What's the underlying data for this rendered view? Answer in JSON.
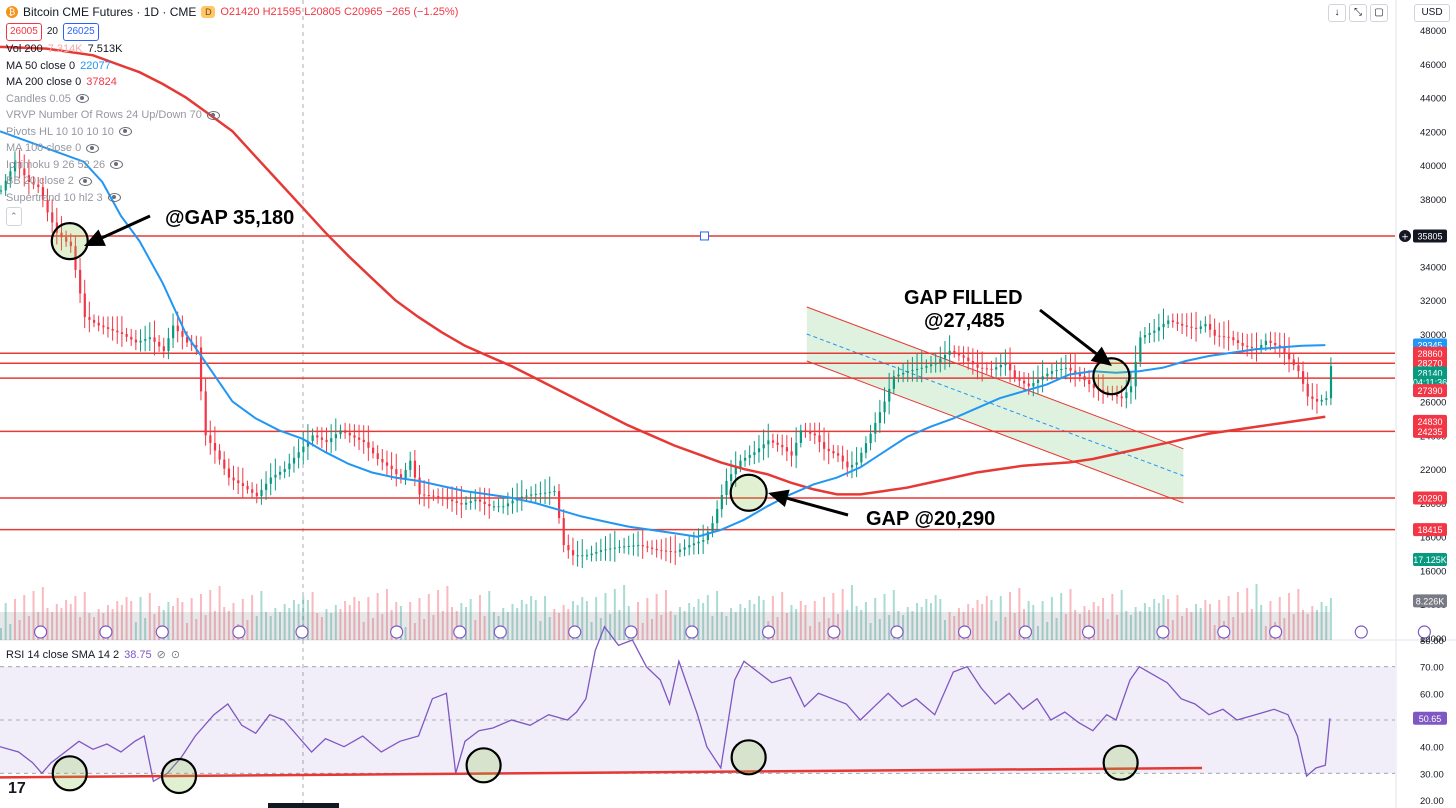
{
  "header": {
    "symbol_title": "Bitcoin CME Futures · 1D · CME",
    "logo_letter": "₿",
    "d_badge": "D",
    "ohlc": {
      "open": "O21420",
      "high": "H21595",
      "low": "L20805",
      "close": "C20965",
      "change": "−265 (−1.25%)"
    },
    "bid": "26005",
    "spread": "20",
    "ask": "26025",
    "currency": "USD"
  },
  "indicators": [
    {
      "name": "Vol 200",
      "v1": "7.314K",
      "v2": "7.513K",
      "c1": "#f7a9a7",
      "c2": "#131722"
    },
    {
      "name": "MA 50 close 0",
      "v1": "22077",
      "c1": "#2196f3"
    },
    {
      "name": "MA 200 close 0",
      "v1": "37824",
      "c1": "#f23645"
    },
    {
      "name": "Candles 0.05",
      "hidden": true
    },
    {
      "name": "VRVP Number Of Rows 24 Up/Down 70",
      "hidden": true
    },
    {
      "name": "Pivots HL 10 10 10 10",
      "hidden": true
    },
    {
      "name": "MA 100 close 0",
      "hidden": true
    },
    {
      "name": "Ichimoku 9 26 52 26",
      "hidden": true
    },
    {
      "name": "BB 20 close 2",
      "hidden": true
    },
    {
      "name": "Supertrend 10 hl2 3",
      "hidden": true
    }
  ],
  "rsi_legend": {
    "label": "RSI 14 close SMA 14 2",
    "value": "38.75"
  },
  "price_axis": [
    "48000",
    "46000",
    "44000",
    "42000",
    "40000",
    "38000",
    "36000",
    "34000",
    "32000",
    "30000",
    "28000",
    "26000",
    "24000",
    "22000",
    "20000",
    "18000",
    "16000",
    "14000",
    "12000"
  ],
  "rsi_axis": [
    "80.00",
    "70.00",
    "60.00",
    "50.00",
    "40.00",
    "30.00",
    "20.00"
  ],
  "price_labels": [
    {
      "text": "35805",
      "color": "#131722",
      "price": 35805
    },
    {
      "text": "29345",
      "color": "#2196f3",
      "price": 29345
    },
    {
      "text": "28860",
      "color": "#f23645",
      "price": 28860
    },
    {
      "text": "28270",
      "color": "#f23645",
      "price": 28270
    },
    {
      "text": "28140",
      "color": "#089981",
      "price": 27700
    },
    {
      "text": "04:11:36",
      "color": "#089981",
      "price": 27150
    },
    {
      "text": "27390",
      "color": "#f23645",
      "price": 26650
    },
    {
      "text": "24830",
      "color": "#f23645",
      "price": 24830
    },
    {
      "text": "24235",
      "color": "#f23645",
      "price": 24235
    },
    {
      "text": "20290",
      "color": "#f23645",
      "price": 20290
    },
    {
      "text": "18415",
      "color": "#f23645",
      "price": 18415
    },
    {
      "text": "17.125K",
      "color": "#089981",
      "price": 16650
    },
    {
      "text": "8.226K",
      "color": "#787b86",
      "price": 14200
    }
  ],
  "rsi_value_label": {
    "text": "50.65",
    "color": "#7e57c2",
    "rsi": 50.65
  },
  "horizontal_levels": [
    35805,
    28860,
    28270,
    27390,
    24235,
    20290,
    18415
  ],
  "annotations": {
    "gap_top": "@GAP 35,180",
    "gap_filled_line1": "GAP FILLED",
    "gap_filled_line2": "@27,485",
    "gap_bottom": "GAP @20,290"
  },
  "colors": {
    "up": "#089981",
    "down": "#f23645",
    "ma50": "#2196f3",
    "ma200": "#e53935",
    "rsi": "#7e57c2",
    "level": "#e53935"
  },
  "chart_data": {
    "type": "candlestick",
    "title": "Bitcoin CME Futures · 1D · CME",
    "ylim": [
      12000,
      48000
    ],
    "rsi_ylim": [
      20,
      80
    ],
    "rsi_band": [
      30,
      70
    ],
    "close_path": [
      [
        0,
        38500
      ],
      [
        6,
        40200
      ],
      [
        12,
        39000
      ],
      [
        16,
        38700
      ],
      [
        20,
        37200
      ],
      [
        24,
        36000
      ],
      [
        30,
        35200
      ],
      [
        36,
        31000
      ],
      [
        42,
        30500
      ],
      [
        52,
        30000
      ],
      [
        58,
        29500
      ],
      [
        64,
        29800
      ],
      [
        70,
        29000
      ],
      [
        74,
        30500
      ],
      [
        80,
        29500
      ],
      [
        84,
        29200
      ],
      [
        88,
        24000
      ],
      [
        92,
        23100
      ],
      [
        98,
        21500
      ],
      [
        104,
        21000
      ],
      [
        110,
        20400
      ],
      [
        116,
        21500
      ],
      [
        122,
        22000
      ],
      [
        128,
        23000
      ],
      [
        134,
        24000
      ],
      [
        140,
        23600
      ],
      [
        146,
        24300
      ],
      [
        150,
        24000
      ],
      [
        156,
        23600
      ],
      [
        162,
        22600
      ],
      [
        168,
        22000
      ],
      [
        172,
        21400
      ],
      [
        176,
        22500
      ],
      [
        180,
        20500
      ],
      [
        186,
        20400
      ],
      [
        192,
        20200
      ],
      [
        198,
        19900
      ],
      [
        204,
        20200
      ],
      [
        210,
        19800
      ],
      [
        216,
        19800
      ],
      [
        222,
        20300
      ],
      [
        228,
        20500
      ],
      [
        234,
        20600
      ],
      [
        238,
        20700
      ],
      [
        242,
        17500
      ],
      [
        246,
        16900
      ],
      [
        252,
        16900
      ],
      [
        258,
        17200
      ],
      [
        266,
        17400
      ],
      [
        274,
        17500
      ],
      [
        282,
        17200
      ],
      [
        290,
        17100
      ],
      [
        296,
        17500
      ],
      [
        302,
        17800
      ],
      [
        306,
        18800
      ],
      [
        312,
        21300
      ],
      [
        318,
        22500
      ],
      [
        324,
        23000
      ],
      [
        330,
        23700
      ],
      [
        336,
        23300
      ],
      [
        340,
        22800
      ],
      [
        344,
        24300
      ],
      [
        350,
        24000
      ],
      [
        354,
        23200
      ],
      [
        360,
        22800
      ],
      [
        364,
        22100
      ],
      [
        368,
        22400
      ],
      [
        374,
        24100
      ],
      [
        380,
        26000
      ],
      [
        384,
        27500
      ],
      [
        390,
        27800
      ],
      [
        396,
        28000
      ],
      [
        402,
        28300
      ],
      [
        408,
        29000
      ],
      [
        414,
        28600
      ],
      [
        420,
        28000
      ],
      [
        426,
        27900
      ],
      [
        432,
        28300
      ],
      [
        436,
        27400
      ],
      [
        442,
        26900
      ],
      [
        448,
        27500
      ],
      [
        452,
        27800
      ],
      [
        458,
        28000
      ],
      [
        464,
        27500
      ],
      [
        470,
        26800
      ],
      [
        476,
        26500
      ],
      [
        482,
        26200
      ],
      [
        486,
        26900
      ],
      [
        490,
        29800
      ],
      [
        496,
        30200
      ],
      [
        502,
        30800
      ],
      [
        508,
        30500
      ],
      [
        514,
        30300
      ],
      [
        518,
        30600
      ],
      [
        522,
        29900
      ],
      [
        528,
        29800
      ],
      [
        534,
        29300
      ],
      [
        540,
        29100
      ],
      [
        544,
        29600
      ],
      [
        550,
        29200
      ],
      [
        554,
        28500
      ],
      [
        558,
        27800
      ],
      [
        562,
        26300
      ],
      [
        566,
        26000
      ],
      [
        570,
        26200
      ],
      [
        572,
        28100
      ]
    ],
    "ma50": [
      [
        0,
        42000
      ],
      [
        20,
        41000
      ],
      [
        36,
        40200
      ],
      [
        44,
        39000
      ],
      [
        52,
        37000
      ],
      [
        60,
        35500
      ],
      [
        70,
        33000
      ],
      [
        80,
        30000
      ],
      [
        90,
        28000
      ],
      [
        100,
        26000
      ],
      [
        110,
        25000
      ],
      [
        120,
        24300
      ],
      [
        130,
        23800
      ],
      [
        140,
        23000
      ],
      [
        150,
        22300
      ],
      [
        160,
        21800
      ],
      [
        170,
        21500
      ],
      [
        180,
        21300
      ],
      [
        190,
        21000
      ],
      [
        200,
        20700
      ],
      [
        210,
        20500
      ],
      [
        220,
        20300
      ],
      [
        230,
        20000
      ],
      [
        240,
        19600
      ],
      [
        250,
        19200
      ],
      [
        260,
        18900
      ],
      [
        270,
        18600
      ],
      [
        280,
        18400
      ],
      [
        290,
        18200
      ],
      [
        300,
        18000
      ],
      [
        310,
        18400
      ],
      [
        320,
        19000
      ],
      [
        330,
        19800
      ],
      [
        340,
        20500
      ],
      [
        350,
        21100
      ],
      [
        360,
        21500
      ],
      [
        370,
        22100
      ],
      [
        380,
        23000
      ],
      [
        390,
        23900
      ],
      [
        400,
        24500
      ],
      [
        410,
        25000
      ],
      [
        420,
        25600
      ],
      [
        430,
        26200
      ],
      [
        440,
        26600
      ],
      [
        450,
        27000
      ],
      [
        460,
        27600
      ],
      [
        470,
        27800
      ],
      [
        480,
        27700
      ],
      [
        490,
        27800
      ],
      [
        500,
        28000
      ],
      [
        510,
        28400
      ],
      [
        520,
        28700
      ],
      [
        530,
        28900
      ],
      [
        540,
        29100
      ],
      [
        550,
        29200
      ],
      [
        560,
        29300
      ],
      [
        570,
        29345
      ]
    ],
    "ma200": [
      [
        0,
        47000
      ],
      [
        20,
        46900
      ],
      [
        40,
        46500
      ],
      [
        60,
        45500
      ],
      [
        70,
        44800
      ],
      [
        80,
        44000
      ],
      [
        90,
        43000
      ],
      [
        100,
        42000
      ],
      [
        110,
        40500
      ],
      [
        120,
        39000
      ],
      [
        130,
        37500
      ],
      [
        140,
        36000
      ],
      [
        150,
        34600
      ],
      [
        160,
        33300
      ],
      [
        170,
        32000
      ],
      [
        180,
        31000
      ],
      [
        190,
        30100
      ],
      [
        200,
        29300
      ],
      [
        210,
        28700
      ],
      [
        220,
        28100
      ],
      [
        230,
        27400
      ],
      [
        240,
        26700
      ],
      [
        250,
        26000
      ],
      [
        260,
        25300
      ],
      [
        270,
        24600
      ],
      [
        280,
        24000
      ],
      [
        290,
        23400
      ],
      [
        300,
        22900
      ],
      [
        310,
        22400
      ],
      [
        320,
        22000
      ],
      [
        330,
        21700
      ],
      [
        340,
        21200
      ],
      [
        350,
        20800
      ],
      [
        360,
        20500
      ],
      [
        370,
        20500
      ],
      [
        380,
        20700
      ],
      [
        390,
        20900
      ],
      [
        400,
        21200
      ],
      [
        410,
        21500
      ],
      [
        420,
        21800
      ],
      [
        430,
        22000
      ],
      [
        440,
        22200
      ],
      [
        450,
        22300
      ],
      [
        460,
        22400
      ],
      [
        470,
        22600
      ],
      [
        480,
        22900
      ],
      [
        490,
        23200
      ],
      [
        500,
        23500
      ],
      [
        510,
        23800
      ],
      [
        520,
        24100
      ],
      [
        530,
        24300
      ],
      [
        540,
        24500
      ],
      [
        550,
        24700
      ],
      [
        560,
        24900
      ],
      [
        570,
        25100
      ]
    ],
    "rsi": [
      [
        0,
        40
      ],
      [
        8,
        38
      ],
      [
        14,
        34
      ],
      [
        18,
        30
      ],
      [
        22,
        34
      ],
      [
        28,
        38
      ],
      [
        34,
        42
      ],
      [
        40,
        39
      ],
      [
        46,
        41
      ],
      [
        52,
        38
      ],
      [
        58,
        42
      ],
      [
        62,
        44
      ],
      [
        66,
        27
      ],
      [
        72,
        30
      ],
      [
        78,
        36
      ],
      [
        84,
        44
      ],
      [
        92,
        52
      ],
      [
        98,
        56
      ],
      [
        104,
        48
      ],
      [
        110,
        45
      ],
      [
        116,
        52
      ],
      [
        122,
        50
      ],
      [
        128,
        44
      ],
      [
        134,
        38
      ],
      [
        140,
        43
      ],
      [
        148,
        40
      ],
      [
        156,
        44
      ],
      [
        164,
        38
      ],
      [
        172,
        42
      ],
      [
        180,
        44
      ],
      [
        186,
        58
      ],
      [
        192,
        60
      ],
      [
        196,
        30
      ],
      [
        200,
        42
      ],
      [
        206,
        46
      ],
      [
        212,
        47
      ],
      [
        220,
        50
      ],
      [
        228,
        48
      ],
      [
        236,
        52
      ],
      [
        244,
        50
      ],
      [
        248,
        53
      ],
      [
        252,
        58
      ],
      [
        256,
        76
      ],
      [
        260,
        85
      ],
      [
        266,
        78
      ],
      [
        272,
        80
      ],
      [
        278,
        70
      ],
      [
        284,
        65
      ],
      [
        288,
        56
      ],
      [
        292,
        72
      ],
      [
        296,
        62
      ],
      [
        300,
        52
      ],
      [
        304,
        40
      ],
      [
        310,
        32
      ],
      [
        316,
        65
      ],
      [
        320,
        72
      ],
      [
        326,
        68
      ],
      [
        332,
        64
      ],
      [
        340,
        66
      ],
      [
        346,
        55
      ],
      [
        352,
        60
      ],
      [
        358,
        58
      ],
      [
        364,
        56
      ],
      [
        370,
        50
      ],
      [
        376,
        55
      ],
      [
        382,
        60
      ],
      [
        388,
        55
      ],
      [
        394,
        58
      ],
      [
        402,
        52
      ],
      [
        410,
        68
      ],
      [
        416,
        70
      ],
      [
        422,
        62
      ],
      [
        428,
        56
      ],
      [
        434,
        60
      ],
      [
        440,
        54
      ],
      [
        446,
        58
      ],
      [
        452,
        50
      ],
      [
        458,
        53
      ],
      [
        464,
        49
      ],
      [
        470,
        46
      ],
      [
        476,
        52
      ],
      [
        480,
        50
      ],
      [
        486,
        65
      ],
      [
        490,
        70
      ],
      [
        496,
        67
      ],
      [
        502,
        64
      ],
      [
        508,
        58
      ],
      [
        514,
        56
      ],
      [
        520,
        52
      ],
      [
        526,
        54
      ],
      [
        532,
        50
      ],
      [
        540,
        52
      ],
      [
        548,
        54
      ],
      [
        554,
        52
      ],
      [
        558,
        44
      ],
      [
        562,
        29
      ],
      [
        566,
        32
      ],
      [
        570,
        33
      ],
      [
        572,
        50.65
      ]
    ],
    "rsi_trendline": [
      [
        0,
        28
      ],
      [
        590,
        32
      ]
    ]
  }
}
